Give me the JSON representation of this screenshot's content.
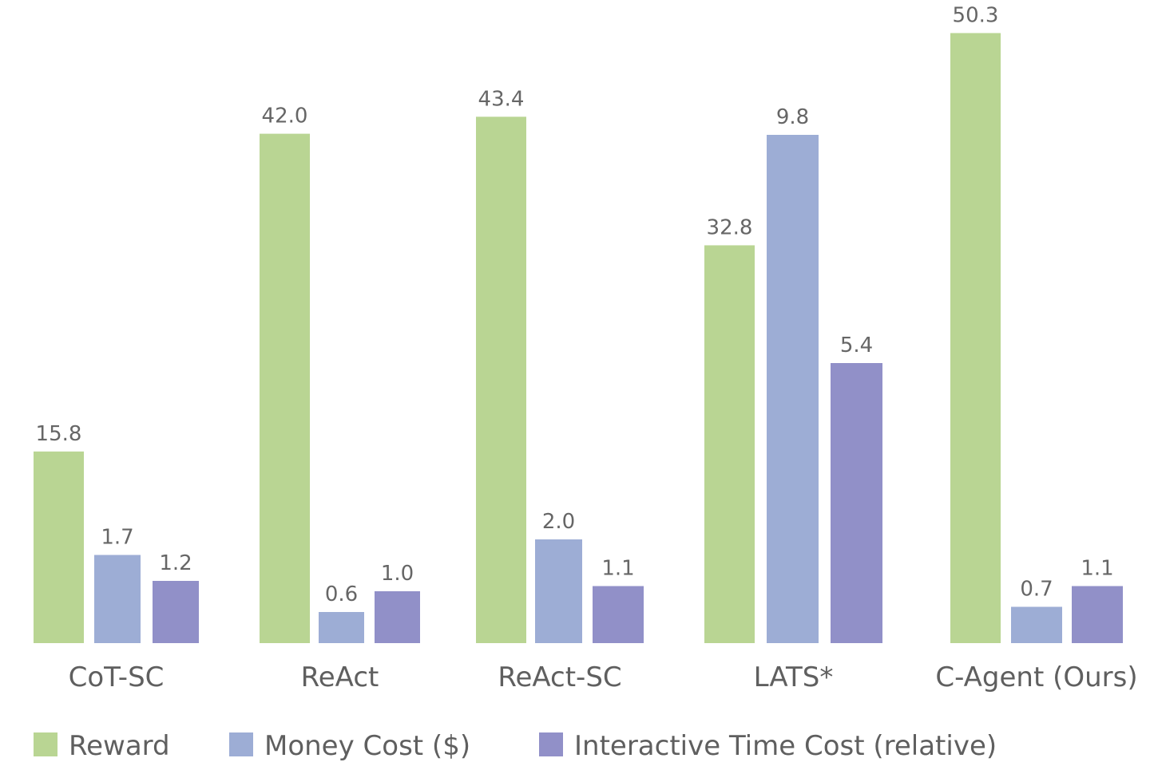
{
  "chart_data": {
    "type": "bar",
    "categories": [
      "CoT-SC",
      "ReAct",
      "ReAct-SC",
      "LATS*",
      "C-Agent (Ours)"
    ],
    "series": [
      {
        "name": "Reward",
        "color": "#b9d593",
        "values": [
          15.8,
          42.0,
          43.4,
          32.8,
          50.3
        ],
        "labels": [
          "15.8",
          "42.0",
          "43.4",
          "32.8",
          "50.3"
        ]
      },
      {
        "name": "Money Cost ($)",
        "color": "#9dadd5",
        "values": [
          1.7,
          0.6,
          2.0,
          9.8,
          0.7
        ],
        "labels": [
          "1.7",
          "0.6",
          "2.0",
          "9.8",
          "0.7"
        ]
      },
      {
        "name": "Interactive Time Cost (relative)",
        "color": "#9190c8",
        "values": [
          1.2,
          1.0,
          1.1,
          5.4,
          1.1
        ],
        "labels": [
          "1.2",
          "1.0",
          "1.1",
          "5.4",
          "1.1"
        ]
      }
    ],
    "legend_position": "bottom",
    "grid": false,
    "axes_visible": false
  }
}
